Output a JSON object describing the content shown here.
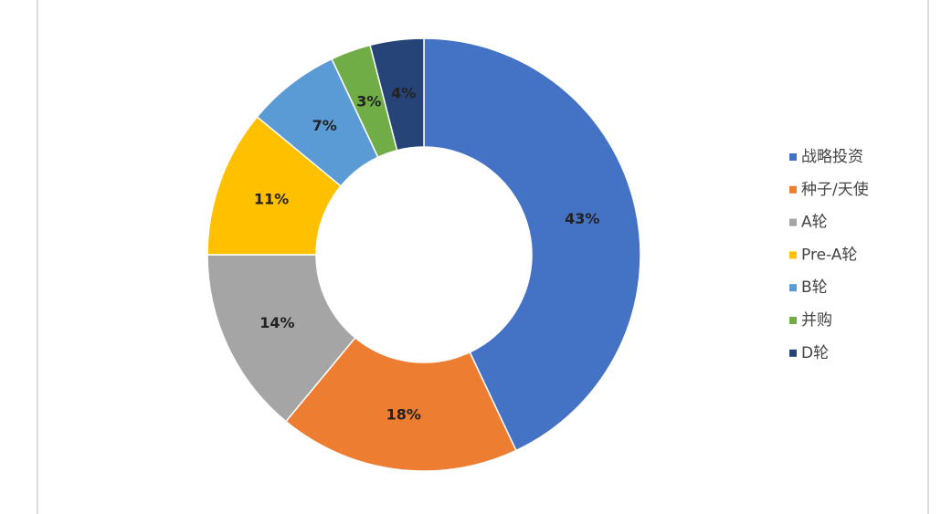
{
  "chart_data": {
    "type": "donut",
    "categories": [
      "战略投资",
      "种子/天使",
      "A轮",
      "Pre-A轮",
      "B轮",
      "并购",
      "D轮"
    ],
    "values": [
      43,
      18,
      14,
      11,
      7,
      3,
      4
    ],
    "value_labels": [
      "43%",
      "18%",
      "14%",
      "11%",
      "7%",
      "3%",
      "4%"
    ],
    "colors": [
      "#4472c4",
      "#ed7d31",
      "#a5a5a5",
      "#ffc000",
      "#5b9bd5",
      "#70ad47",
      "#264478"
    ],
    "legend": "right"
  }
}
